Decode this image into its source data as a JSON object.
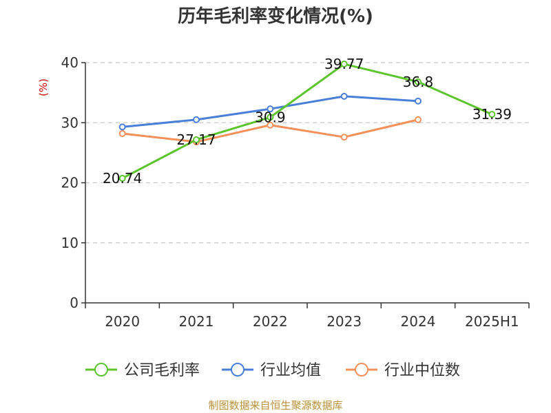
{
  "chart_data": {
    "type": "line",
    "title": "历年毛利率变化情况(%)",
    "ylabel": "(%)",
    "xlabel": "",
    "categories": [
      "2020",
      "2021",
      "2022",
      "2023",
      "2024",
      "2025H1"
    ],
    "ylim": [
      0,
      40
    ],
    "yticks": [
      0,
      10,
      20,
      30,
      40
    ],
    "grid": true,
    "legend_position": "bottom",
    "series": [
      {
        "name": "公司毛利率",
        "color": "#5cc52e",
        "values": [
          20.74,
          27.17,
          30.9,
          39.77,
          36.8,
          31.39
        ],
        "show_labels": true
      },
      {
        "name": "行业均值",
        "color": "#4a7fd8",
        "values": [
          29.3,
          30.5,
          32.3,
          34.4,
          33.6,
          null
        ],
        "show_labels": false
      },
      {
        "name": "行业中位数",
        "color": "#f4905a",
        "values": [
          28.2,
          26.8,
          29.6,
          27.6,
          30.5,
          null
        ],
        "show_labels": false
      }
    ]
  },
  "data_labels": [
    "20.74",
    "27.17",
    "30.9",
    "39.77",
    "36.8",
    "31.39"
  ],
  "source": "制图数据来自恒生聚源数据库"
}
